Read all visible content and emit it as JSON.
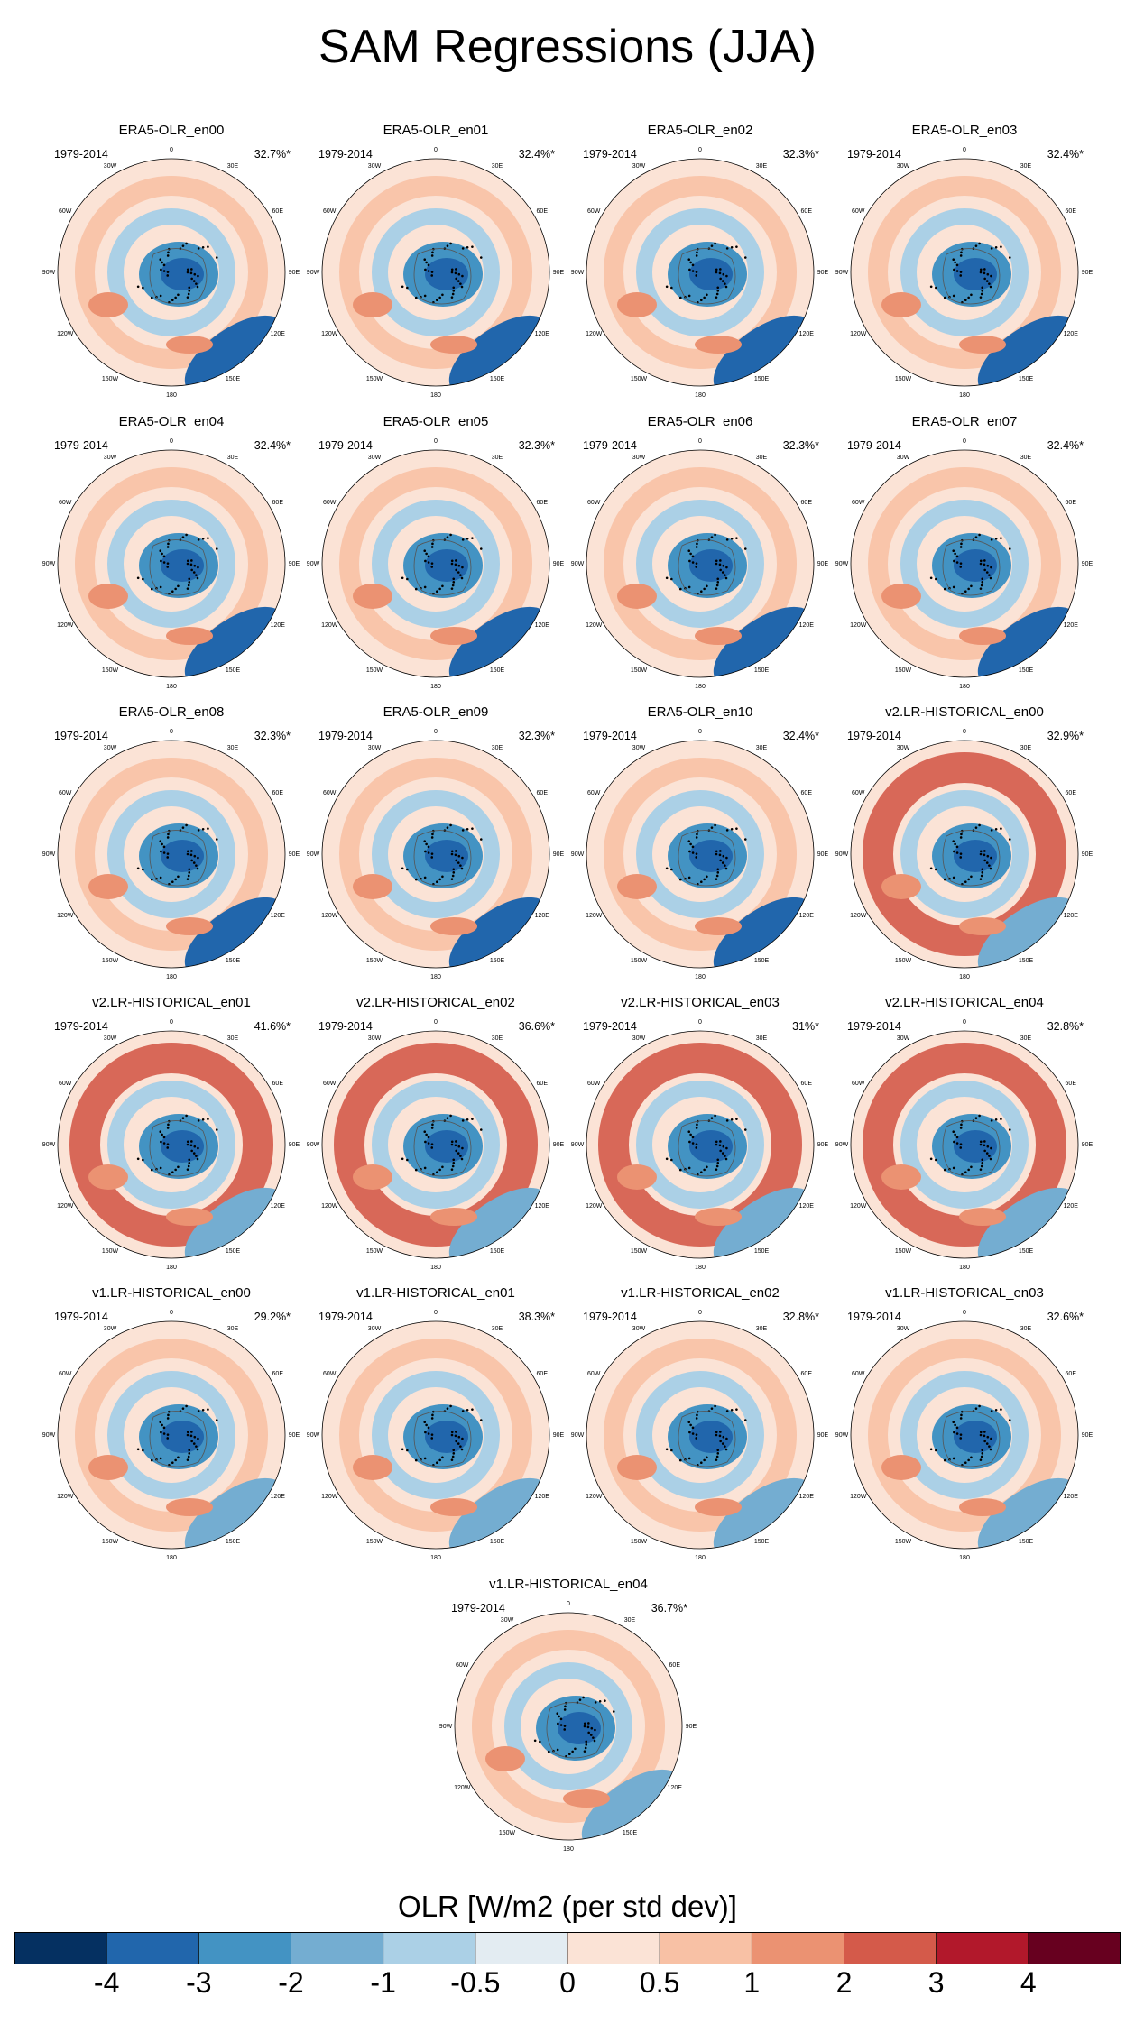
{
  "title": "SAM Regressions (JJA)",
  "chart_data": {
    "type": "map-panels",
    "projection": "south polar stereographic",
    "season": "JJA",
    "period": "1979-2014",
    "longitude_labels": [
      "0",
      "30E",
      "60E",
      "90E",
      "120E",
      "150E",
      "180",
      "150W",
      "120W",
      "90W",
      "60W",
      "30W"
    ],
    "panels": [
      {
        "name": "ERA5-OLR_en00",
        "period": "1979-2014",
        "variance": "32.7%*"
      },
      {
        "name": "ERA5-OLR_en01",
        "period": "1979-2014",
        "variance": "32.4%*"
      },
      {
        "name": "ERA5-OLR_en02",
        "period": "1979-2014",
        "variance": "32.3%*"
      },
      {
        "name": "ERA5-OLR_en03",
        "period": "1979-2014",
        "variance": "32.4%*"
      },
      {
        "name": "ERA5-OLR_en04",
        "period": "1979-2014",
        "variance": "32.4%*"
      },
      {
        "name": "ERA5-OLR_en05",
        "period": "1979-2014",
        "variance": "32.3%*"
      },
      {
        "name": "ERA5-OLR_en06",
        "period": "1979-2014",
        "variance": "32.3%*"
      },
      {
        "name": "ERA5-OLR_en07",
        "period": "1979-2014",
        "variance": "32.4%*"
      },
      {
        "name": "ERA5-OLR_en08",
        "period": "1979-2014",
        "variance": "32.3%*"
      },
      {
        "name": "ERA5-OLR_en09",
        "period": "1979-2014",
        "variance": "32.3%*"
      },
      {
        "name": "ERA5-OLR_en10",
        "period": "1979-2014",
        "variance": "32.4%*"
      },
      {
        "name": "v2.LR-HISTORICAL_en00",
        "period": "1979-2014",
        "variance": "32.9%*"
      },
      {
        "name": "v2.LR-HISTORICAL_en01",
        "period": "1979-2014",
        "variance": "41.6%*"
      },
      {
        "name": "v2.LR-HISTORICAL_en02",
        "period": "1979-2014",
        "variance": "36.6%*"
      },
      {
        "name": "v2.LR-HISTORICAL_en03",
        "period": "1979-2014",
        "variance": "31%*"
      },
      {
        "name": "v2.LR-HISTORICAL_en04",
        "period": "1979-2014",
        "variance": "32.8%*"
      },
      {
        "name": "v1.LR-HISTORICAL_en00",
        "period": "1979-2014",
        "variance": "29.2%*"
      },
      {
        "name": "v1.LR-HISTORICAL_en01",
        "period": "1979-2014",
        "variance": "38.3%*"
      },
      {
        "name": "v1.LR-HISTORICAL_en02",
        "period": "1979-2014",
        "variance": "32.8%*"
      },
      {
        "name": "v1.LR-HISTORICAL_en03",
        "period": "1979-2014",
        "variance": "32.6%*"
      },
      {
        "name": "v1.LR-HISTORICAL_en04",
        "period": "1979-2014",
        "variance": "36.7%*"
      }
    ],
    "colorbar": {
      "title": "OLR [W/m2 (per std dev)]",
      "tick_labels": [
        "-4",
        "-3",
        "-2",
        "-1",
        "-0.5",
        "0",
        "0.5",
        "1",
        "2",
        "3",
        "4"
      ],
      "colors": [
        "#053061",
        "#2166ac",
        "#4393c3",
        "#74add1",
        "#abd0e6",
        "#e3ecf2",
        "#fbe3d6",
        "#f8c1a5",
        "#eb9272",
        "#d45a4a",
        "#b2182b",
        "#67001f"
      ]
    }
  }
}
